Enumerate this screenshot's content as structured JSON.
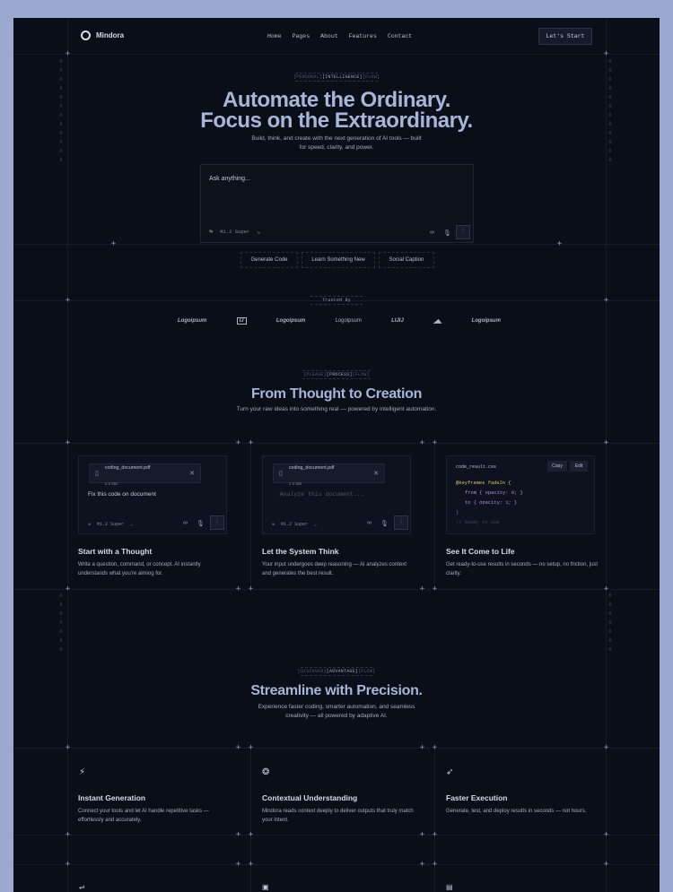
{
  "brand": {
    "name": "Mindora"
  },
  "nav": {
    "items": [
      "Home",
      "Pages",
      "About",
      "Features",
      "Contact"
    ],
    "cta": "Let's Start"
  },
  "hero": {
    "tag_left": "[PERSONAL]",
    "tag_mid": "[INTELLIGENCE]",
    "tag_right": "[FLOW]",
    "title_line1": "Automate the Ordinary.",
    "title_line2": "Focus on the Extraordinary.",
    "subtitle_line1": "Build, think, and create with the next generation of AI tools — built",
    "subtitle_line2": "for speed, clarity, and power.",
    "prompt_placeholder": "Ask anything...",
    "model": "M1.2 Super",
    "chips": [
      "Generate Code",
      "Learn Something New",
      "Social Caption"
    ]
  },
  "trusted": {
    "label": "Trusted By",
    "logos": [
      "Logoipsum",
      "IJ",
      "Logoipsum",
      "Logoipsum",
      "LIJIJ",
      "◢◣",
      "Logoipsum"
    ]
  },
  "process": {
    "tag_left": "[PLEASE]",
    "tag_mid": "[PROCESS]",
    "tag_right": "[FLOW]",
    "title": "From Thought to Creation",
    "subtitle": "Turn your raw ideas into something real — powered by intelligent automation.",
    "card1": {
      "file_name": "coding_document.pdf",
      "file_size": "2.5 MB",
      "prompt": "Fix this code on document",
      "model": "M1.2 Super",
      "title": "Start with a Thought",
      "desc": "Write a question, command, or concept. AI instantly understands what you're aiming for."
    },
    "card2": {
      "file_name": "coding_document.pdf",
      "file_size": "2.5 MB",
      "status": "Analyze this document...",
      "model": "M1.2 Super",
      "title": "Let the System Think",
      "desc": "Your input undergoes deep reasoning — AI analyzes context and generates the best result."
    },
    "card3": {
      "file_name": "code_result.css",
      "copy": "Copy",
      "edit": "Edit",
      "code": [
        "@keyframes fadeIn {",
        "from { opacity: 0; }",
        "to { opacity: 1; }",
        "}",
        "// Ready to use"
      ],
      "title": "See It Come to Life",
      "desc": "Get ready-to-use results in seconds — no setup, no friction, just clarity."
    }
  },
  "advantage": {
    "tag_left": "[DISCOVER]",
    "tag_mid": "[ADVANTAGE]",
    "tag_right": "[FLOW]",
    "title": "Streamline with Precision.",
    "subtitle_line1": "Experience faster coding, smarter automation, and seamless",
    "subtitle_line2": "creativity — all powered by adaptive AI.",
    "features": [
      {
        "icon": "bolt-icon",
        "title": "Instant Generation",
        "desc": "Connect your tools and let AI handle repetitive tasks — effortlessly and accurately."
      },
      {
        "icon": "brain-icon",
        "title": "Contextual Understanding",
        "desc": "Mindora reads context deeply to deliver outputs that truly match your intent."
      },
      {
        "icon": "rocket-icon",
        "title": "Faster Execution",
        "desc": "Generate, test, and deploy results in seconds — not hours."
      }
    ]
  },
  "colors": {
    "page_bg": "#9ba8cf",
    "frame_bg": "#0a0e18",
    "heading": "#a7b5d8",
    "keyword": "#e6c46a",
    "property": "#b48ee8",
    "number": "#e88aa6"
  }
}
